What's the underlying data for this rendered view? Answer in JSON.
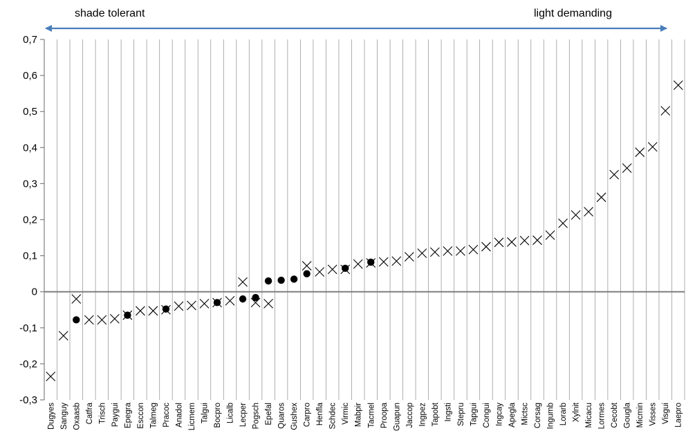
{
  "chart_data": {
    "type": "scatter",
    "title": "",
    "xlabel": "",
    "ylabel": "",
    "annotations": {
      "left": "shade tolerant",
      "right": "light demanding"
    },
    "arrow_color": "#4a7ebb",
    "ylim": [
      -0.3,
      0.7
    ],
    "yticks": [
      -0.3,
      -0.2,
      -0.1,
      0,
      0.1,
      0.2,
      0.3,
      0.4,
      0.5,
      0.6,
      0.7
    ],
    "ytick_labels": [
      "-0,3",
      "-0,2",
      "-0,1",
      "0",
      "0,1",
      "0,2",
      "0,3",
      "0,4",
      "0,5",
      "0,6",
      "0,7"
    ],
    "grid": {
      "vertical": true,
      "horizontal": false
    },
    "categories": [
      "Dugyes",
      "Sanguy",
      "Oxaasb",
      "Catfra",
      "Trisch",
      "Paygui",
      "Epegra",
      "Esccon",
      "Talmeg",
      "Pracoc",
      "Anadol",
      "Licmem",
      "Talgui",
      "Bocpro",
      "Licalb",
      "Lecper",
      "Pogsch",
      "Epefal",
      "Quaros",
      "Gushex",
      "Carpro",
      "Henfla",
      "Schdec",
      "Virmic",
      "Mabpir",
      "Tacmel",
      "Proopa",
      "Guapun",
      "Jaccop",
      "Ingpez",
      "Tapobt",
      "Ingsti",
      "Stepru",
      "Tapgui",
      "Congui",
      "Ingcay",
      "Apegla",
      "Mictsc",
      "Corsag",
      "Ingumb",
      "Lorarb",
      "Xylnit",
      "Micacu",
      "Lormes",
      "Cecobt",
      "Gougla",
      "Micmin",
      "Visses",
      "Visgui",
      "Laepro"
    ],
    "series": [
      {
        "marker": "x",
        "values": [
          -0.235,
          -0.122,
          -0.02,
          -0.078,
          -0.078,
          -0.075,
          -0.065,
          -0.053,
          -0.053,
          -0.05,
          -0.04,
          -0.038,
          -0.033,
          -0.03,
          -0.025,
          0.027,
          -0.03,
          -0.033,
          null,
          null,
          0.072,
          0.055,
          0.062,
          0.062,
          0.077,
          0.08,
          0.083,
          0.085,
          0.097,
          0.107,
          0.11,
          0.113,
          0.113,
          0.117,
          0.125,
          0.137,
          0.138,
          0.142,
          0.143,
          0.157,
          0.19,
          0.213,
          0.222,
          0.262,
          0.325,
          0.343,
          0.387,
          0.402,
          0.502,
          0.573
        ]
      },
      {
        "marker": "dot",
        "values": [
          null,
          null,
          -0.078,
          null,
          null,
          null,
          -0.065,
          null,
          null,
          -0.048,
          null,
          null,
          null,
          -0.03,
          null,
          -0.02,
          -0.016,
          0.03,
          0.032,
          0.035,
          0.05,
          null,
          null,
          0.065,
          null,
          0.082,
          null,
          null,
          null,
          null,
          null,
          null,
          null,
          null,
          null,
          null,
          null,
          null,
          null,
          null,
          null,
          null,
          null,
          null,
          null,
          null,
          null,
          null,
          null,
          null
        ]
      }
    ]
  }
}
